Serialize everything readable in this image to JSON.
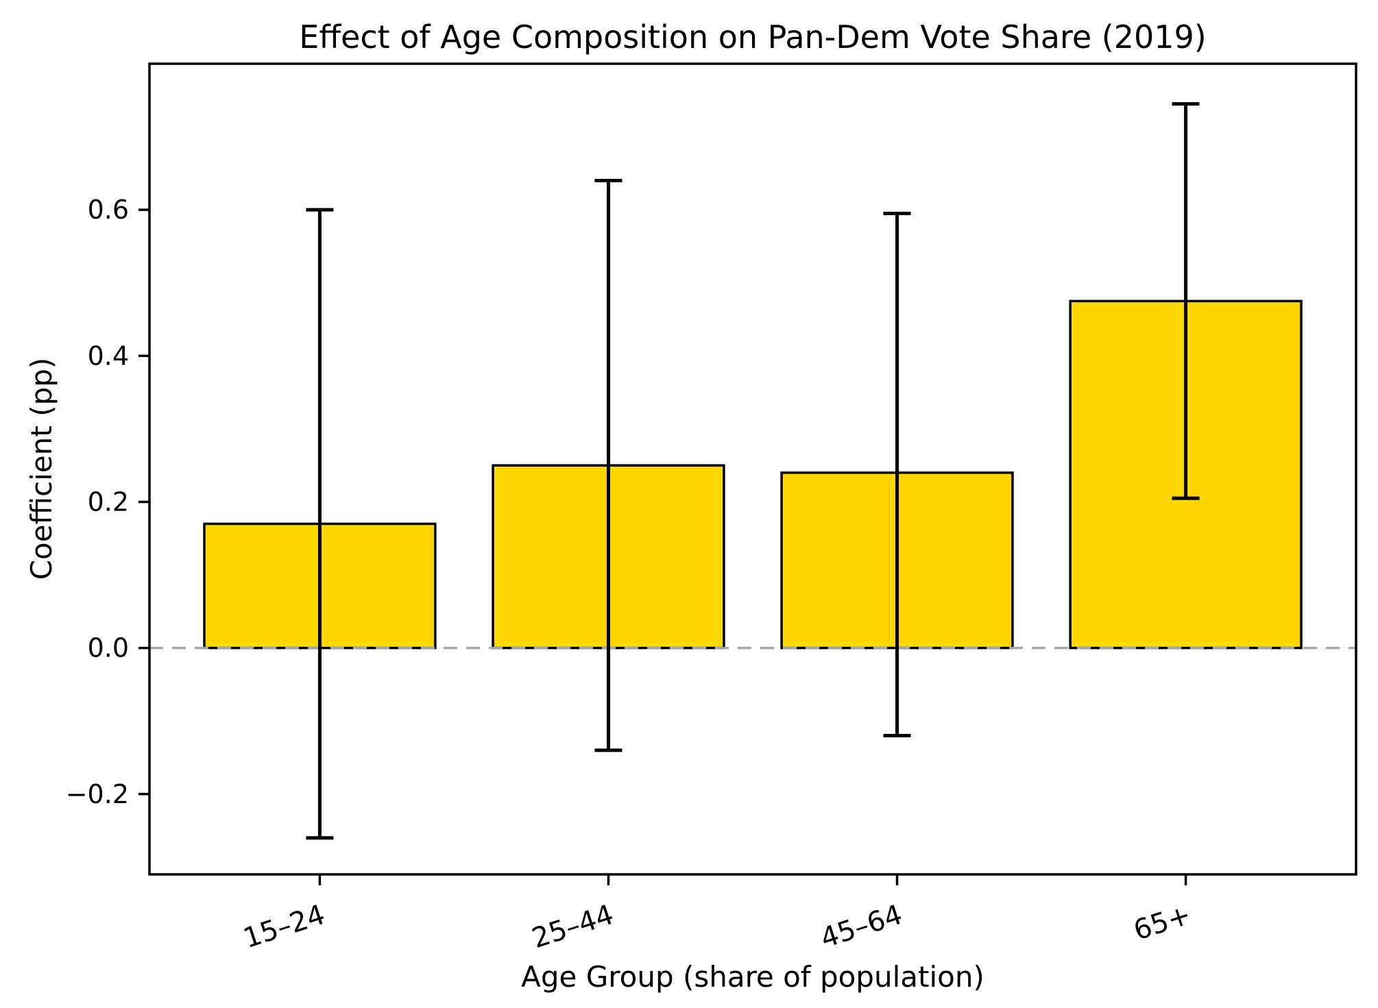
{
  "chart_data": {
    "type": "bar",
    "title": "Effect of Age Composition on Pan-Dem Vote Share (2019)",
    "xlabel": "Age Group (share of population)",
    "ylabel": "Coefficient (pp)",
    "categories": [
      "15–24",
      "25–44",
      "45–64",
      "65+"
    ],
    "values": [
      0.17,
      0.25,
      0.24,
      0.475
    ],
    "error_bars": {
      "ci_low": [
        -0.26,
        -0.14,
        -0.12,
        0.205
      ],
      "ci_high": [
        0.6,
        0.64,
        0.595,
        0.745
      ]
    },
    "yticks": [
      -0.2,
      0.0,
      0.2,
      0.4,
      0.6
    ],
    "ytick_labels": [
      "−0.2",
      "0.0",
      "0.2",
      "0.4",
      "0.6"
    ],
    "ylim": [
      -0.31,
      0.8
    ],
    "grid": false,
    "legend": null,
    "x_tick_label_rotation_deg": 18,
    "zero_line": {
      "style": "dashed"
    },
    "colors": {
      "bar_fill": "#FFD700",
      "bar_edge": "#000000",
      "error_bar": "#000000",
      "zero_line": "#a6a6a6",
      "axis": "#000000",
      "text": "#000000",
      "background": "#ffffff"
    }
  }
}
